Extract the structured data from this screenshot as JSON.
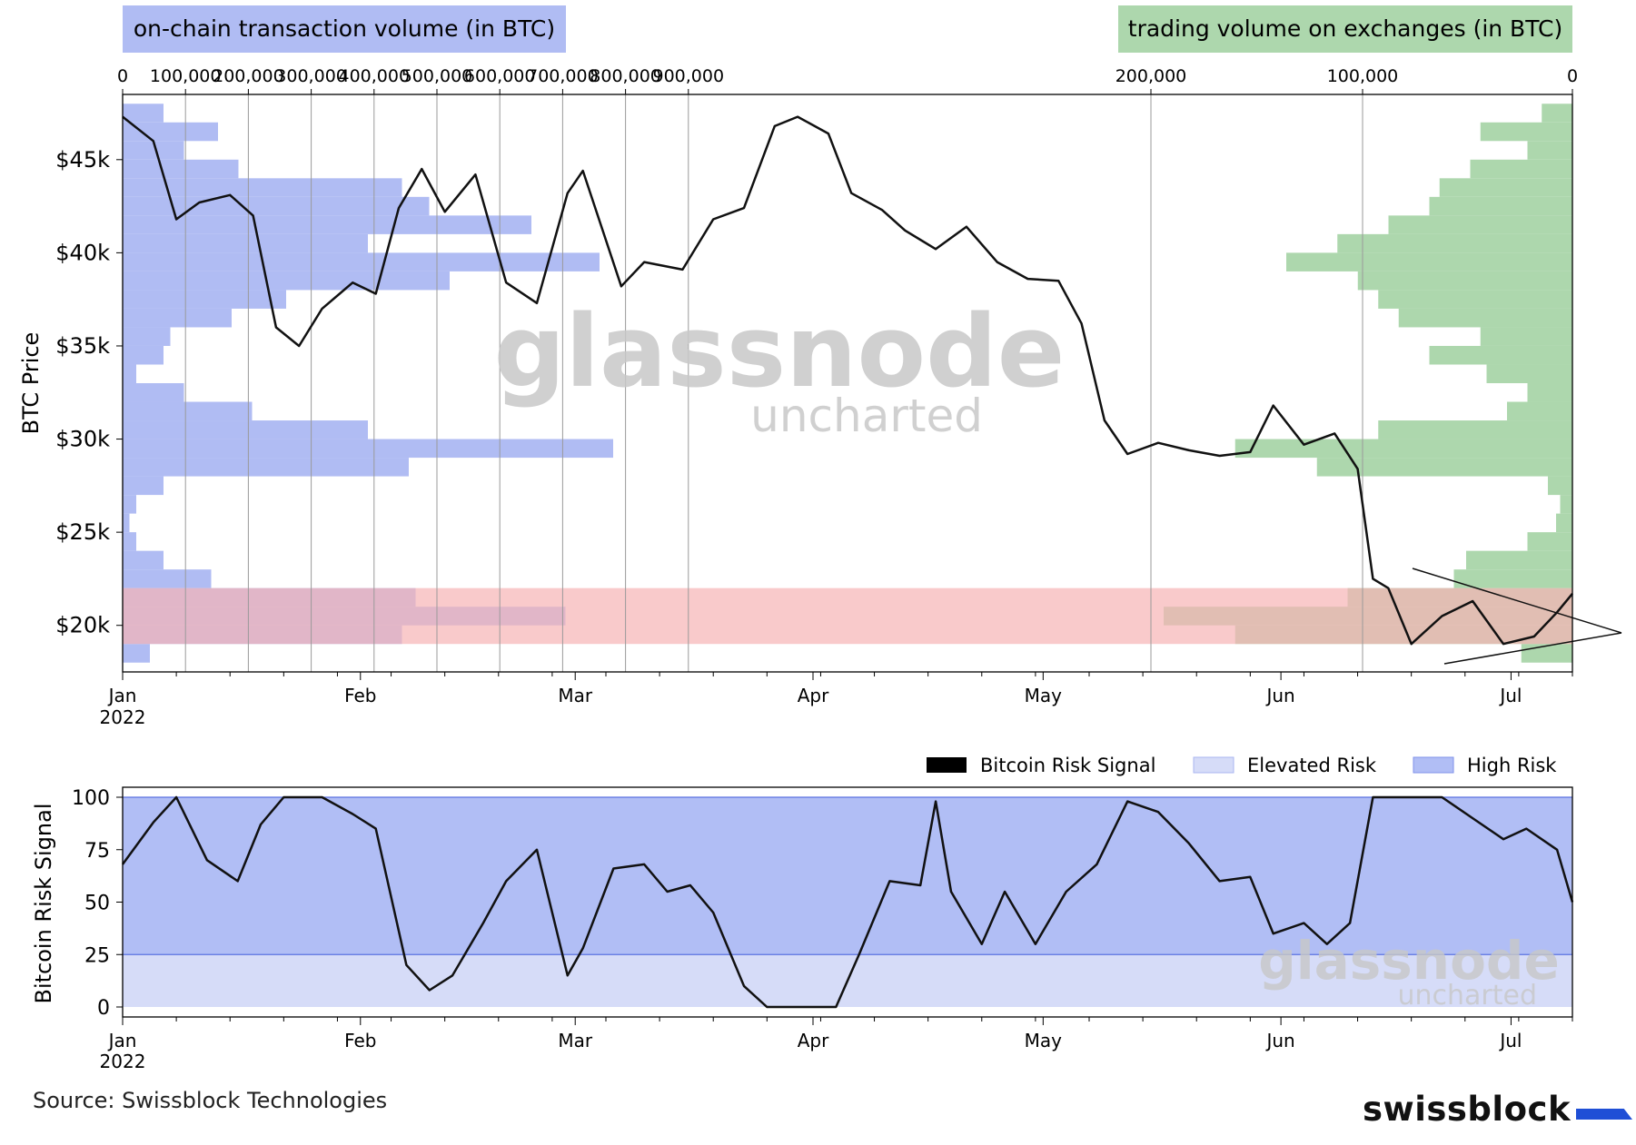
{
  "colors": {
    "onchain": "#b0bcf3",
    "exchange": "#add7ad",
    "support_band": "#f7b3b5",
    "elevated_risk": "#d6dcf8",
    "high_risk": "#b1bef5",
    "line": "#111111"
  },
  "top_chart": {
    "onchain_box": "on-chain transaction volume (in BTC)",
    "exchange_box": "trading volume on exchanges (in BTC)",
    "ylabel": "BTC Price",
    "watermark_main": "glassnode",
    "watermark_sub": "uncharted",
    "onchain_ticks": [
      "0",
      "100,000",
      "200,000",
      "300,000",
      "400,000",
      "500,000",
      "600,000",
      "700,000",
      "800,000",
      "900,000"
    ],
    "exchange_ticks": [
      "200,000",
      "100,000",
      "0"
    ],
    "yticks": [
      "$45k",
      "$40k",
      "$35k",
      "$30k",
      "$25k",
      "$20k"
    ],
    "xticks": [
      "Jan",
      "Feb",
      "Mar",
      "Apr",
      "May",
      "Jun",
      "Jul"
    ],
    "year": "2022"
  },
  "bottom_chart": {
    "ylabel": "Bitcoin Risk Signal",
    "yticks": [
      "100",
      "75",
      "50",
      "25",
      "0"
    ],
    "xticks": [
      "Jan",
      "Feb",
      "Mar",
      "Apr",
      "May",
      "Jun",
      "Jul"
    ],
    "year": "2022",
    "legend": [
      "Bitcoin Risk Signal",
      "Elevated Risk",
      "High Risk"
    ],
    "watermark_main": "glassnode",
    "watermark_sub": "uncharted"
  },
  "footer": {
    "source": "Source: Swissblock Technologies",
    "brand": "swissblock"
  },
  "chart_data": [
    {
      "type": "line",
      "title": "",
      "ylabel": "BTC Price",
      "ylim": [
        17500,
        48500
      ],
      "xlim": [
        "2022-01-01",
        "2022-07-09"
      ],
      "support_band": [
        19000,
        22000
      ],
      "series": [
        {
          "name": "BTC Price",
          "x": [
            "2022-01-01",
            "2022-01-05",
            "2022-01-08",
            "2022-01-11",
            "2022-01-15",
            "2022-01-18",
            "2022-01-21",
            "2022-01-24",
            "2022-01-27",
            "2022-01-31",
            "2022-02-03",
            "2022-02-06",
            "2022-02-09",
            "2022-02-12",
            "2022-02-16",
            "2022-02-20",
            "2022-02-24",
            "2022-02-28",
            "2022-03-02",
            "2022-03-07",
            "2022-03-10",
            "2022-03-15",
            "2022-03-19",
            "2022-03-23",
            "2022-03-27",
            "2022-03-30",
            "2022-04-03",
            "2022-04-06",
            "2022-04-10",
            "2022-04-13",
            "2022-04-17",
            "2022-04-21",
            "2022-04-25",
            "2022-04-29",
            "2022-05-03",
            "2022-05-06",
            "2022-05-09",
            "2022-05-12",
            "2022-05-16",
            "2022-05-20",
            "2022-05-24",
            "2022-05-28",
            "2022-05-31",
            "2022-06-04",
            "2022-06-08",
            "2022-06-11",
            "2022-06-13",
            "2022-06-15",
            "2022-06-18",
            "2022-06-22",
            "2022-06-26",
            "2022-06-30",
            "2022-07-04",
            "2022-07-07",
            "2022-07-09"
          ],
          "values": [
            47300,
            46000,
            41800,
            42700,
            43100,
            42000,
            36000,
            35000,
            37000,
            38400,
            37800,
            42400,
            44500,
            42200,
            44200,
            38400,
            37300,
            43200,
            44400,
            38200,
            39500,
            39100,
            41800,
            42400,
            46800,
            47300,
            46400,
            43200,
            42300,
            41200,
            40200,
            41400,
            39500,
            38600,
            38500,
            36200,
            31000,
            29200,
            29800,
            29400,
            29100,
            29300,
            31800,
            29700,
            30300,
            28400,
            22500,
            22000,
            19000,
            20500,
            21300,
            19000,
            19400,
            20700,
            21700
          ]
        }
      ]
    },
    {
      "type": "bar",
      "orientation": "horizontal",
      "title": "on-chain transaction volume (in BTC)",
      "xlim": [
        0,
        900000
      ],
      "categories": [
        47500,
        46500,
        45500,
        44500,
        43500,
        42500,
        41500,
        40500,
        39500,
        38500,
        37500,
        36500,
        35500,
        34500,
        33500,
        32500,
        31500,
        30500,
        29500,
        28500,
        27500,
        26500,
        25500,
        24500,
        23500,
        22500,
        21500,
        20500,
        19500,
        18500
      ],
      "series": [
        {
          "name": "on-chain transaction volume (in BTC)",
          "values": [
            60000,
            140000,
            90000,
            170000,
            410000,
            450000,
            600000,
            360000,
            700000,
            480000,
            240000,
            160000,
            70000,
            60000,
            20000,
            90000,
            190000,
            360000,
            720000,
            420000,
            60000,
            20000,
            10000,
            20000,
            60000,
            130000,
            430000,
            650000,
            410000,
            40000
          ]
        }
      ]
    },
    {
      "type": "bar",
      "orientation": "horizontal",
      "title": "trading volume on exchanges (in BTC)",
      "xlim": [
        0,
        200000
      ],
      "categories": [
        47500,
        46500,
        45500,
        44500,
        43500,
        42500,
        41500,
        40500,
        39500,
        38500,
        37500,
        36500,
        35500,
        34500,
        33500,
        32500,
        31500,
        30500,
        29500,
        28500,
        27500,
        26500,
        25500,
        24500,
        23500,
        22500,
        21500,
        20500,
        19500,
        18500
      ],
      "series": [
        {
          "name": "trading volume on exchanges (in BTC)",
          "values": [
            15000,
            45000,
            22000,
            50000,
            65000,
            70000,
            90000,
            115000,
            140000,
            105000,
            95000,
            85000,
            45000,
            70000,
            42000,
            22000,
            32000,
            95000,
            165000,
            125000,
            12000,
            6000,
            8000,
            22000,
            52000,
            58000,
            110000,
            200000,
            165000,
            25000
          ]
        }
      ]
    },
    {
      "type": "line",
      "title": "",
      "ylabel": "Bitcoin Risk Signal",
      "ylim": [
        0,
        100
      ],
      "xlim": [
        "2022-01-01",
        "2022-07-09"
      ],
      "bands": [
        {
          "name": "Elevated Risk",
          "range": [
            0,
            25
          ]
        },
        {
          "name": "High Risk",
          "range": [
            25,
            100
          ]
        }
      ],
      "series": [
        {
          "name": "Bitcoin Risk Signal",
          "x": [
            "2022-01-01",
            "2022-01-05",
            "2022-01-08",
            "2022-01-12",
            "2022-01-16",
            "2022-01-19",
            "2022-01-22",
            "2022-01-27",
            "2022-01-31",
            "2022-02-03",
            "2022-02-07",
            "2022-02-10",
            "2022-02-13",
            "2022-02-17",
            "2022-02-20",
            "2022-02-24",
            "2022-02-28",
            "2022-03-02",
            "2022-03-06",
            "2022-03-10",
            "2022-03-13",
            "2022-03-16",
            "2022-03-19",
            "2022-03-23",
            "2022-03-26",
            "2022-04-04",
            "2022-04-07",
            "2022-04-11",
            "2022-04-15",
            "2022-04-17",
            "2022-04-19",
            "2022-04-23",
            "2022-04-26",
            "2022-04-30",
            "2022-05-04",
            "2022-05-08",
            "2022-05-12",
            "2022-05-16",
            "2022-05-20",
            "2022-05-24",
            "2022-05-28",
            "2022-05-31",
            "2022-06-04",
            "2022-06-07",
            "2022-06-10",
            "2022-06-13",
            "2022-06-17",
            "2022-06-22",
            "2022-06-26",
            "2022-06-30",
            "2022-07-03",
            "2022-07-07",
            "2022-07-09"
          ],
          "values": [
            68,
            88,
            100,
            70,
            60,
            87,
            100,
            100,
            92,
            85,
            20,
            8,
            15,
            40,
            60,
            75,
            15,
            28,
            66,
            68,
            55,
            58,
            45,
            10,
            0,
            0,
            25,
            60,
            58,
            98,
            55,
            30,
            55,
            30,
            55,
            68,
            98,
            93,
            78,
            60,
            62,
            35,
            40,
            30,
            40,
            100,
            100,
            100,
            90,
            80,
            85,
            75,
            50
          ]
        }
      ]
    }
  ]
}
